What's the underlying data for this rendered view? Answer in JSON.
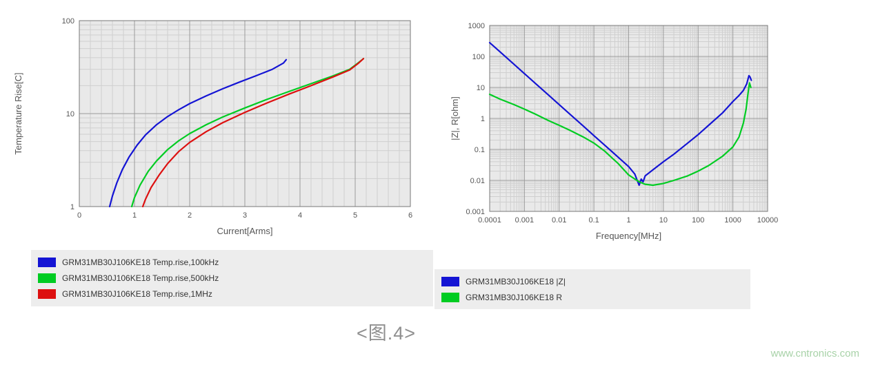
{
  "caption": {
    "text": "<图.4>"
  },
  "watermark": {
    "text": "www.cntronics.com"
  },
  "colors": {
    "blue": "#1414d4",
    "green": "#00cc22",
    "red": "#dd1010",
    "plot_bg": "#e9e9e9",
    "grid_minor": "#cfcfcf",
    "grid_major": "#9b9b9b",
    "plot_border": "#777777",
    "axis_text": "#555555",
    "legend_bg": "#ededed",
    "caption": "#8f8f8f",
    "watermark": "#a8d2a8"
  },
  "chart_data": [
    {
      "type": "line",
      "title": "",
      "xlabel": "Current[Arms]",
      "ylabel": "Temperature Rise[C]",
      "xscale": "linear",
      "yscale": "log",
      "xlim": [
        0,
        6
      ],
      "ylim": [
        1,
        100
      ],
      "xticks": [
        0,
        1,
        2,
        3,
        4,
        5,
        6
      ],
      "yticks": [
        1,
        10,
        100
      ],
      "grid": true,
      "legend_position": "below",
      "series": [
        {
          "name": "GRM31MB30J106KE18 Temp.rise,100kHz",
          "color": "#1414d4",
          "points": [
            [
              0.55,
              1
            ],
            [
              0.6,
              1.3
            ],
            [
              0.68,
              1.8
            ],
            [
              0.78,
              2.5
            ],
            [
              0.9,
              3.4
            ],
            [
              1.05,
              4.6
            ],
            [
              1.2,
              5.9
            ],
            [
              1.4,
              7.6
            ],
            [
              1.6,
              9.3
            ],
            [
              1.8,
              11
            ],
            [
              2.0,
              12.8
            ],
            [
              2.3,
              15.5
            ],
            [
              2.6,
              18.5
            ],
            [
              2.9,
              21.8
            ],
            [
              3.2,
              25.5
            ],
            [
              3.5,
              30
            ],
            [
              3.7,
              35
            ],
            [
              3.75,
              38
            ]
          ]
        },
        {
          "name": "GRM31MB30J106KE18 Temp.rise,500kHz",
          "color": "#00cc22",
          "points": [
            [
              0.95,
              1
            ],
            [
              1.0,
              1.25
            ],
            [
              1.1,
              1.7
            ],
            [
              1.25,
              2.4
            ],
            [
              1.4,
              3.1
            ],
            [
              1.6,
              4.1
            ],
            [
              1.8,
              5.1
            ],
            [
              2.0,
              6.1
            ],
            [
              2.3,
              7.6
            ],
            [
              2.6,
              9.2
            ],
            [
              3.0,
              11.5
            ],
            [
              3.4,
              14.2
            ],
            [
              3.8,
              17.3
            ],
            [
              4.2,
              21
            ],
            [
              4.6,
              25.5
            ],
            [
              4.9,
              30
            ],
            [
              5.05,
              35
            ],
            [
              5.15,
              39
            ]
          ]
        },
        {
          "name": "GRM31MB30J106KE18 Temp.rise,1MHz",
          "color": "#dd1010",
          "points": [
            [
              1.15,
              1
            ],
            [
              1.2,
              1.2
            ],
            [
              1.3,
              1.6
            ],
            [
              1.45,
              2.2
            ],
            [
              1.6,
              2.9
            ],
            [
              1.8,
              3.9
            ],
            [
              2.0,
              4.9
            ],
            [
              2.3,
              6.4
            ],
            [
              2.6,
              8
            ],
            [
              3.0,
              10.3
            ],
            [
              3.4,
              13
            ],
            [
              3.8,
              16.2
            ],
            [
              4.2,
              20
            ],
            [
              4.6,
              24.8
            ],
            [
              4.9,
              29.5
            ],
            [
              5.05,
              34.5
            ],
            [
              5.15,
              39
            ]
          ]
        }
      ]
    },
    {
      "type": "line",
      "title": "",
      "xlabel": "Frequency[MHz]",
      "ylabel": "|Z|, R[ohm]",
      "xscale": "log",
      "yscale": "log",
      "xlim": [
        0.0001,
        10000
      ],
      "ylim": [
        0.001,
        1000
      ],
      "xticks": [
        0.0001,
        0.001,
        0.01,
        0.1,
        1,
        10,
        100,
        1000,
        10000
      ],
      "yticks": [
        0.001,
        0.01,
        0.1,
        1,
        10,
        100,
        1000
      ],
      "grid": true,
      "legend_position": "below",
      "series": [
        {
          "name": "GRM31MB30J106KE18 |Z|",
          "color": "#1414d4",
          "points": [
            [
              0.0001,
              280
            ],
            [
              0.0002,
              140
            ],
            [
              0.0005,
              56
            ],
            [
              0.001,
              28
            ],
            [
              0.002,
              14
            ],
            [
              0.005,
              5.6
            ],
            [
              0.01,
              2.8
            ],
            [
              0.02,
              1.4
            ],
            [
              0.05,
              0.56
            ],
            [
              0.1,
              0.28
            ],
            [
              0.2,
              0.14
            ],
            [
              0.5,
              0.056
            ],
            [
              1,
              0.028
            ],
            [
              1.5,
              0.016
            ],
            [
              2,
              0.007
            ],
            [
              2.3,
              0.011
            ],
            [
              2.6,
              0.009
            ],
            [
              3,
              0.014
            ],
            [
              5,
              0.022
            ],
            [
              10,
              0.04
            ],
            [
              20,
              0.07
            ],
            [
              50,
              0.16
            ],
            [
              100,
              0.3
            ],
            [
              200,
              0.6
            ],
            [
              500,
              1.5
            ],
            [
              1000,
              3.5
            ],
            [
              1500,
              5.5
            ],
            [
              2000,
              8
            ],
            [
              2500,
              13
            ],
            [
              2900,
              24
            ],
            [
              3100,
              22
            ],
            [
              3400,
              17
            ]
          ]
        },
        {
          "name": "GRM31MB30J106KE18 R",
          "color": "#00cc22",
          "points": [
            [
              0.0001,
              6
            ],
            [
              0.0002,
              4.2
            ],
            [
              0.0005,
              2.8
            ],
            [
              0.001,
              2
            ],
            [
              0.002,
              1.4
            ],
            [
              0.005,
              0.85
            ],
            [
              0.01,
              0.6
            ],
            [
              0.02,
              0.42
            ],
            [
              0.05,
              0.25
            ],
            [
              0.1,
              0.16
            ],
            [
              0.2,
              0.09
            ],
            [
              0.5,
              0.035
            ],
            [
              1,
              0.015
            ],
            [
              2,
              0.009
            ],
            [
              3,
              0.0075
            ],
            [
              5,
              0.007
            ],
            [
              10,
              0.008
            ],
            [
              20,
              0.01
            ],
            [
              50,
              0.014
            ],
            [
              100,
              0.02
            ],
            [
              200,
              0.03
            ],
            [
              500,
              0.06
            ],
            [
              1000,
              0.12
            ],
            [
              1500,
              0.25
            ],
            [
              2000,
              0.7
            ],
            [
              2400,
              2
            ],
            [
              2700,
              6
            ],
            [
              3000,
              14
            ],
            [
              3300,
              10
            ]
          ]
        }
      ]
    }
  ]
}
